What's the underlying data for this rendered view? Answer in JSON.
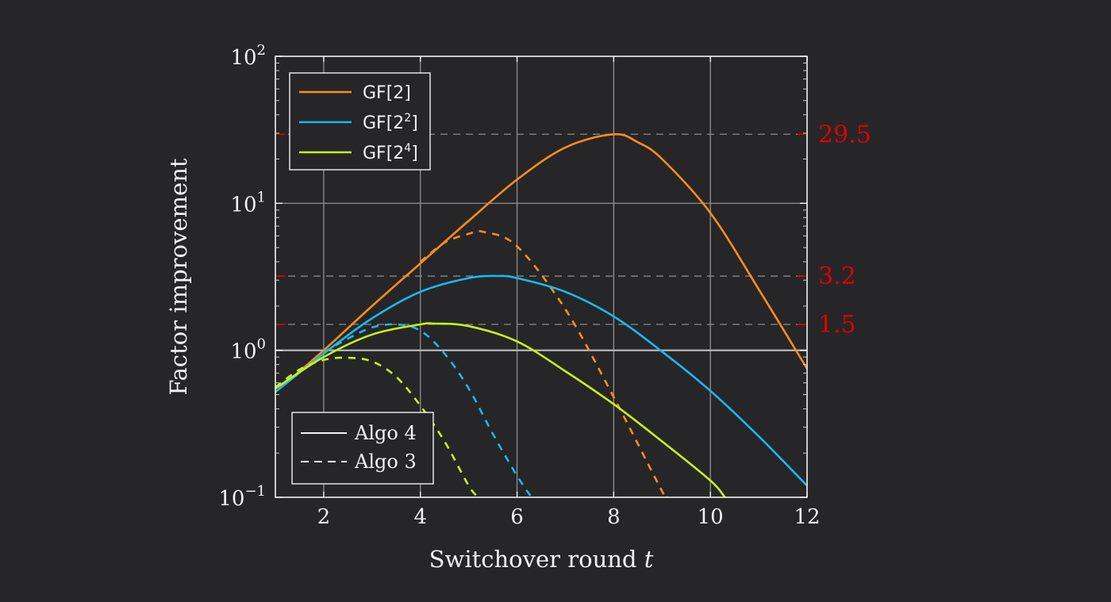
{
  "chart_data": {
    "type": "line",
    "xlabel": "Switchover round",
    "xlabel_var": "t",
    "ylabel": "Factor improvement",
    "xlim": [
      1,
      12
    ],
    "ylim": [
      0.1,
      100
    ],
    "yscale": "log",
    "x_ticks": [
      "2",
      "4",
      "6",
      "8",
      "10",
      "12"
    ],
    "x_tick_values": [
      2,
      4,
      6,
      8,
      10,
      12
    ],
    "y_ticks": [
      {
        "base": "10",
        "exp": "−1",
        "value": 0.1
      },
      {
        "base": "10",
        "exp": "0",
        "value": 1
      },
      {
        "base": "10",
        "exp": "1",
        "value": 10
      },
      {
        "base": "10",
        "exp": "2",
        "value": 100
      }
    ],
    "grid": true,
    "reference_lines": [
      {
        "value": 29.5,
        "label": "29.5"
      },
      {
        "value": 3.2,
        "label": "3.2"
      },
      {
        "value": 1.5,
        "label": "1.5"
      }
    ],
    "baseline": 1,
    "legend_fields": {
      "position": "top-left",
      "entries": [
        {
          "base": "GF[2",
          "sup": "",
          "close": "]",
          "color": "#ff8c1a"
        },
        {
          "base": "GF[2",
          "sup": "2",
          "close": "]",
          "color": "#1ab8f0"
        },
        {
          "base": "GF[2",
          "sup": "4",
          "close": "]",
          "color": "#c6f01e"
        }
      ]
    },
    "legend_algos": {
      "position": "bottom-left",
      "entries": [
        {
          "label": "Algo 4",
          "style": "solid"
        },
        {
          "label": "Algo 3",
          "style": "dashed"
        }
      ]
    },
    "series": [
      {
        "field": "GF[2]",
        "algo": "Algo 4",
        "color": "#ff8c1a",
        "style": "solid",
        "x": [
          1,
          2,
          3,
          4,
          5,
          6,
          7,
          8,
          8.5,
          9,
          10,
          11,
          12
        ],
        "y": [
          0.52,
          1.0,
          2.0,
          3.9,
          7.6,
          14.5,
          24.0,
          29.5,
          26.0,
          20.0,
          8.6,
          2.6,
          0.75
        ]
      },
      {
        "field": "GF[2]",
        "algo": "Algo 3",
        "color": "#ff8c1a",
        "style": "dashed",
        "x": [
          4,
          4.5,
          5,
          5.3,
          6,
          7,
          8,
          9,
          9.1
        ],
        "y": [
          4.0,
          5.4,
          6.2,
          6.4,
          5.1,
          1.9,
          0.48,
          0.11,
          0.1
        ]
      },
      {
        "field": "GF[2^2]",
        "algo": "Algo 4",
        "color": "#1ab8f0",
        "style": "solid",
        "x": [
          1,
          2,
          3,
          4,
          5,
          5.6,
          6,
          7,
          8,
          9,
          10,
          11,
          12
        ],
        "y": [
          0.52,
          0.95,
          1.65,
          2.5,
          3.1,
          3.2,
          3.1,
          2.5,
          1.7,
          0.98,
          0.53,
          0.26,
          0.12
        ]
      },
      {
        "field": "GF[2^2]",
        "algo": "Algo 3",
        "color": "#1ab8f0",
        "style": "dashed",
        "x": [
          2,
          2.5,
          3,
          3.5,
          4,
          4.5,
          5,
          5.5,
          6,
          6.3
        ],
        "y": [
          0.97,
          1.2,
          1.43,
          1.5,
          1.36,
          0.95,
          0.55,
          0.27,
          0.14,
          0.1
        ]
      },
      {
        "field": "GF[2^4]",
        "algo": "Algo 4",
        "color": "#c6f01e",
        "style": "solid",
        "x": [
          1,
          2,
          3,
          4,
          4.3,
          5,
          6,
          7,
          8,
          9,
          10,
          10.3
        ],
        "y": [
          0.55,
          0.9,
          1.28,
          1.5,
          1.52,
          1.46,
          1.15,
          0.72,
          0.43,
          0.24,
          0.13,
          0.1
        ]
      },
      {
        "field": "GF[2^4]",
        "algo": "Algo 3",
        "color": "#c6f01e",
        "style": "dashed",
        "x": [
          1,
          1.5,
          2,
          2.5,
          3,
          3.5,
          4,
          4.5,
          5,
          5.2
        ],
        "y": [
          0.56,
          0.74,
          0.86,
          0.89,
          0.84,
          0.66,
          0.42,
          0.24,
          0.12,
          0.1
        ]
      }
    ]
  }
}
